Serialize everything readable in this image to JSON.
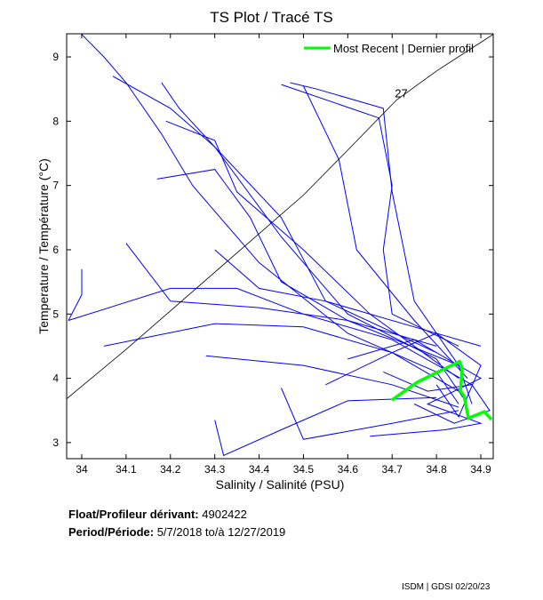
{
  "chart_data": {
    "type": "line",
    "title": "TS Plot / Tracé TS",
    "xlabel": "Salinity / Salinité (PSU)",
    "ylabel": "Temperature / Température (°C)",
    "xlim": [
      33.966,
      34.928
    ],
    "ylim": [
      2.75,
      9.36
    ],
    "xticks": [
      34,
      34.1,
      34.2,
      34.3,
      34.4,
      34.5,
      34.6,
      34.7,
      34.8,
      34.9
    ],
    "yticks": [
      3,
      4,
      5,
      6,
      7,
      8,
      9
    ],
    "grid": false,
    "legend": {
      "position": "top-right",
      "entries": [
        {
          "label": "Most Recent | Dernier profil",
          "color": "#00ff00"
        }
      ]
    },
    "density_contour": {
      "label": "27",
      "color": "#000000",
      "x": [
        33.966,
        34.1,
        34.2,
        34.35,
        34.5,
        34.6,
        34.71,
        34.8,
        34.93
      ],
      "y": [
        3.68,
        4.45,
        5.05,
        5.95,
        6.85,
        7.55,
        8.33,
        8.78,
        9.36
      ]
    },
    "profiles_color": "#0000ff",
    "profiles": [
      {
        "x": [
          34.0,
          34.05,
          34.1,
          34.18,
          34.25,
          34.4,
          34.6,
          34.8,
          34.85
        ],
        "y": [
          9.35,
          9.0,
          8.6,
          7.8,
          7.0,
          5.8,
          4.7,
          4.1,
          3.6
        ]
      },
      {
        "x": [
          34.18,
          34.22,
          34.3,
          34.45,
          34.6,
          34.8,
          34.86
        ],
        "y": [
          8.6,
          8.2,
          7.6,
          6.2,
          5.0,
          4.3,
          3.7
        ]
      },
      {
        "x": [
          34.47,
          34.53,
          34.68,
          34.7,
          34.75,
          34.85,
          34.88
        ],
        "y": [
          8.6,
          8.5,
          8.2,
          6.9,
          5.2,
          4.2,
          3.6
        ]
      },
      {
        "x": [
          34.5,
          34.58,
          34.62,
          34.75,
          34.87
        ],
        "y": [
          8.55,
          7.4,
          6.0,
          4.9,
          4.0
        ]
      },
      {
        "x": [
          34.17,
          34.3,
          34.38,
          34.45,
          34.6,
          34.85
        ],
        "y": [
          7.1,
          7.25,
          6.5,
          5.5,
          4.9,
          4.2
        ]
      },
      {
        "x": [
          33.97,
          34.2,
          34.35,
          34.5,
          34.7,
          34.88
        ],
        "y": [
          4.9,
          5.4,
          5.4,
          5.0,
          4.6,
          3.9
        ]
      },
      {
        "x": [
          34.05,
          34.3,
          34.5,
          34.7,
          34.85
        ],
        "y": [
          4.5,
          4.85,
          4.8,
          4.4,
          3.8
        ]
      },
      {
        "x": [
          34.3,
          34.32,
          34.45,
          34.6,
          34.8
        ],
        "y": [
          3.35,
          2.8,
          3.2,
          3.65,
          3.7
        ]
      },
      {
        "x": [
          34.45,
          34.5,
          34.7,
          34.85
        ],
        "y": [
          3.85,
          3.05,
          3.3,
          3.5
        ]
      },
      {
        "x": [
          34.28,
          34.5,
          34.7,
          34.85
        ],
        "y": [
          4.35,
          4.2,
          3.9,
          3.55
        ]
      },
      {
        "x": [
          34.0,
          34.0,
          33.97
        ],
        "y": [
          5.7,
          5.3,
          4.9
        ]
      },
      {
        "x": [
          34.45,
          34.67,
          34.7,
          34.68,
          34.7,
          34.85
        ],
        "y": [
          8.57,
          8.05,
          7.0,
          6.0,
          5.0,
          4.5
        ]
      },
      {
        "x": [
          34.3,
          34.4,
          34.55,
          34.75,
          34.9
        ],
        "y": [
          6.0,
          5.4,
          5.2,
          4.8,
          4.5
        ]
      },
      {
        "x": [
          34.1,
          34.2,
          34.4,
          34.6,
          34.8
        ],
        "y": [
          6.1,
          5.2,
          5.1,
          4.9,
          4.5
        ]
      },
      {
        "x": [
          34.6,
          34.75,
          34.9,
          34.78,
          34.9,
          34.82,
          34.65
        ],
        "y": [
          4.3,
          4.6,
          4.0,
          3.6,
          3.3,
          3.2,
          3.1
        ]
      },
      {
        "x": [
          34.07,
          34.2,
          34.3,
          34.45,
          34.55,
          34.8
        ],
        "y": [
          8.7,
          8.2,
          7.6,
          6.5,
          5.2,
          4.4
        ]
      },
      {
        "x": [
          34.19,
          34.3,
          34.35,
          34.5,
          34.65,
          34.85
        ],
        "y": [
          8.0,
          7.7,
          6.9,
          6.0,
          5.0,
          4.0
        ]
      },
      {
        "x": [
          34.55,
          34.7,
          34.8,
          34.9,
          34.85,
          34.8
        ],
        "y": [
          3.9,
          4.4,
          4.7,
          4.2,
          3.4,
          3.9
        ]
      },
      {
        "x": [
          34.68,
          34.78,
          34.88,
          34.92,
          34.84,
          34.75
        ],
        "y": [
          4.1,
          3.8,
          3.9,
          3.5,
          3.3,
          3.6
        ]
      }
    ],
    "most_recent": {
      "x": [
        34.699,
        34.757,
        34.798,
        34.852,
        34.858,
        34.854,
        34.862,
        34.868,
        34.872,
        34.908,
        34.924
      ],
      "y": [
        3.66,
        3.94,
        4.08,
        4.26,
        4.15,
        3.8,
        3.73,
        3.52,
        3.38,
        3.48,
        3.36
      ]
    }
  },
  "info": {
    "float_label": "Float/Profileur dérivant:",
    "float_value": "4902422",
    "period_label": "Period/Période:",
    "period_value": "5/7/2018  to/à  12/27/2019"
  },
  "footer": "ISDM | GDSI  02/20/23"
}
